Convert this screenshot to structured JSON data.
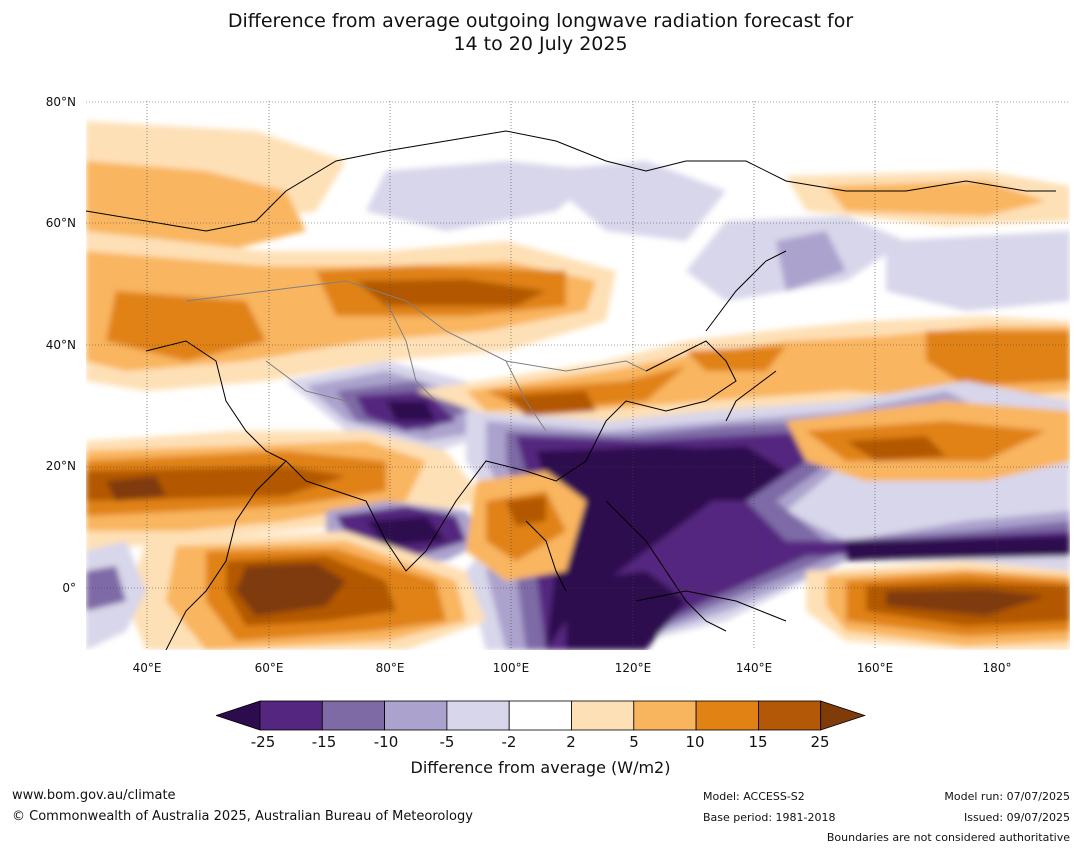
{
  "title_line1": "Difference from average outgoing longwave radiation forecast for",
  "title_line2": "14 to 20 July 2025",
  "lat_labels": [
    "80°N",
    "60°N",
    "40°N",
    "20°N",
    "0°"
  ],
  "lon_labels": [
    "40°E",
    "60°E",
    "80°E",
    "100°E",
    "120°E",
    "140°E",
    "160°E",
    "180°"
  ],
  "colorbar": {
    "labels": [
      "-25",
      "-15",
      "-10",
      "-5",
      "-2",
      "2",
      "5",
      "10",
      "15",
      "25"
    ],
    "colors": [
      "#2d0b4f",
      "#54267f",
      "#7e6ba6",
      "#aba3cd",
      "#d8d6ea",
      "#ffffff",
      "#fee0b6",
      "#f9b55e",
      "#e08214",
      "#b35806",
      "#7f3b08"
    ],
    "title": "Difference from average (W/m2)"
  },
  "footer": {
    "url": "www.bom.gov.au/climate",
    "copyright": "© Commonwealth of Australia 2025, Australian Bureau of Meteorology",
    "model": "Model: ACCESS-S2",
    "base_period": "Base period: 1981-2018",
    "model_run": "Model run: 07/07/2025",
    "issued": "Issued: 09/07/2025",
    "disclaimer": "Boundaries are not considered authoritative"
  }
}
